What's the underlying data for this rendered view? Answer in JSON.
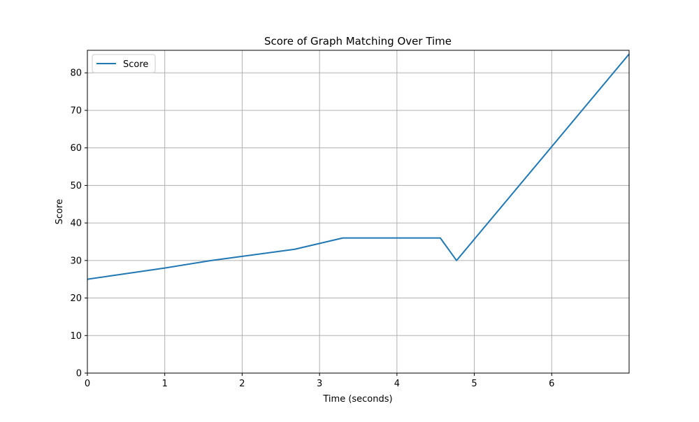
{
  "chart_data": {
    "type": "line",
    "title": "Score of Graph Matching Over Time",
    "xlabel": "Time (seconds)",
    "ylabel": "Score",
    "xlim": [
      0,
      7
    ],
    "ylim": [
      0,
      86
    ],
    "xticks": [
      "0",
      "1",
      "2",
      "3",
      "4",
      "5",
      "6"
    ],
    "yticks": [
      "0",
      "10",
      "20",
      "30",
      "40",
      "50",
      "60",
      "70",
      "80"
    ],
    "grid": true,
    "legend_position": "top-left",
    "series": [
      {
        "name": "Score",
        "color": "#1f77b4",
        "x": [
          0,
          1,
          1.6,
          2.68,
          3.3,
          4.56,
          4.77,
          7
        ],
        "y": [
          25,
          28,
          30,
          33,
          36,
          36,
          30,
          85
        ]
      }
    ]
  }
}
